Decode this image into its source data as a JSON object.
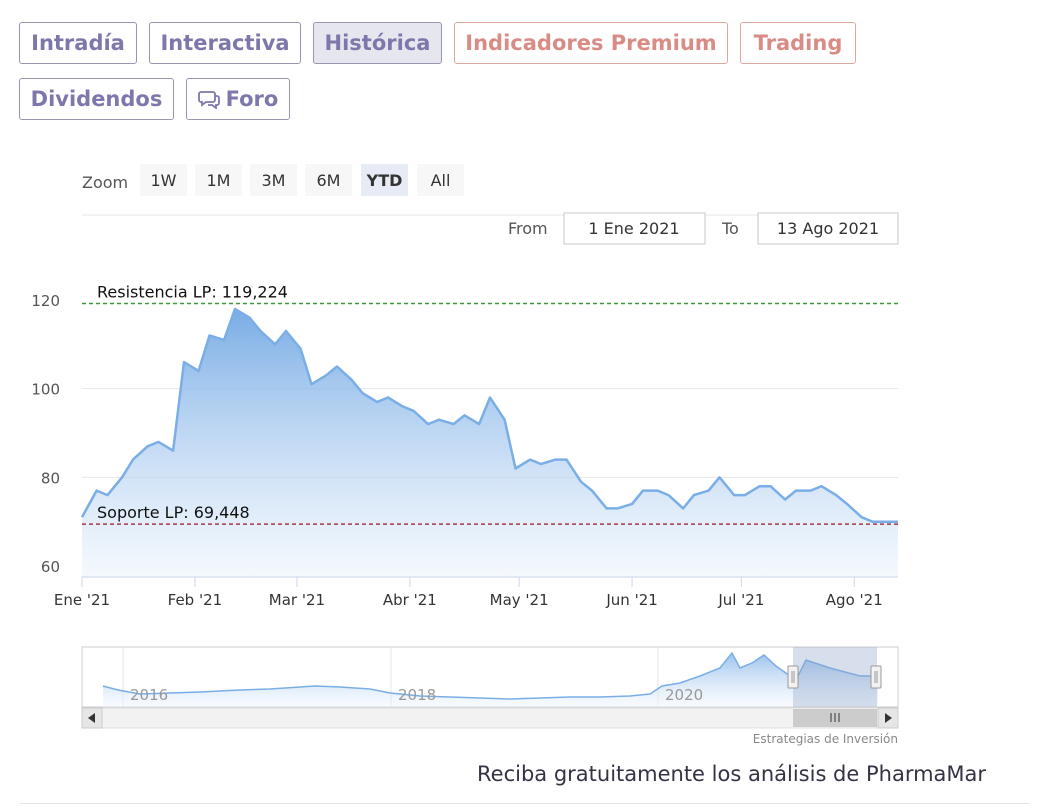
{
  "tabs": {
    "intradia": "Intradía",
    "interactiva": "Interactiva",
    "historica": "Histórica",
    "indicadores": "Indicadores Premium",
    "trading": "Trading",
    "dividendos": "Dividendos",
    "foro": "Foro"
  },
  "range_selector": {
    "zoom_label": "Zoom",
    "buttons": [
      "1W",
      "1M",
      "3M",
      "6M",
      "YTD",
      "All"
    ],
    "selected": "YTD",
    "from_label": "From",
    "from_value": "1 Ene 2021",
    "to_label": "To",
    "to_value": "13 Ago 2021"
  },
  "credit": "Estrategias de Inversión",
  "cta": "Reciba gratuitamente los análisis de PharmaMar",
  "colors": {
    "line": "#7aaee6",
    "area_top": "#7aaee6",
    "resistance": "#3a9a3a",
    "support": "#a33a4a",
    "tab_text": "#7d77ac",
    "premium_text": "#d98c85"
  },
  "chart_data": {
    "type": "area",
    "title": "",
    "xlabel": "",
    "ylabel": "",
    "ylim": [
      56,
      122
    ],
    "x_ticks": [
      "Ene '21",
      "Feb '21",
      "Mar '21",
      "Abr '21",
      "May '21",
      "Jun '21",
      "Jul '21",
      "Ago '21"
    ],
    "y_ticks": [
      60,
      80,
      100,
      120
    ],
    "grid": true,
    "annotations": [
      {
        "label": "Resistencia LP: 119,224",
        "value": 119.224
      },
      {
        "label": "Soporte LP: 69,448",
        "value": 69.448
      }
    ],
    "x": [
      "2021-01-01",
      "2021-01-05",
      "2021-01-08",
      "2021-01-12",
      "2021-01-15",
      "2021-01-19",
      "2021-01-22",
      "2021-01-26",
      "2021-01-29",
      "2021-02-02",
      "2021-02-05",
      "2021-02-09",
      "2021-02-12",
      "2021-02-16",
      "2021-02-19",
      "2021-02-23",
      "2021-02-26",
      "2021-03-02",
      "2021-03-05",
      "2021-03-09",
      "2021-03-12",
      "2021-03-16",
      "2021-03-19",
      "2021-03-23",
      "2021-03-26",
      "2021-03-30",
      "2021-04-02",
      "2021-04-06",
      "2021-04-09",
      "2021-04-13",
      "2021-04-16",
      "2021-04-20",
      "2021-04-23",
      "2021-04-27",
      "2021-04-30",
      "2021-05-04",
      "2021-05-07",
      "2021-05-11",
      "2021-05-14",
      "2021-05-18",
      "2021-05-21",
      "2021-05-25",
      "2021-05-28",
      "2021-06-01",
      "2021-06-04",
      "2021-06-08",
      "2021-06-11",
      "2021-06-15",
      "2021-06-18",
      "2021-06-22",
      "2021-06-25",
      "2021-06-29",
      "2021-07-02",
      "2021-07-06",
      "2021-07-09",
      "2021-07-13",
      "2021-07-16",
      "2021-07-20",
      "2021-07-23",
      "2021-07-27",
      "2021-07-30",
      "2021-08-03",
      "2021-08-06",
      "2021-08-10",
      "2021-08-13"
    ],
    "series": [
      {
        "values": [
          71,
          77,
          76,
          80,
          84,
          87,
          88,
          86,
          106,
          104,
          112,
          111,
          118,
          116,
          113,
          110,
          113,
          109,
          101,
          103,
          105,
          102,
          99,
          97,
          98,
          96,
          95,
          92,
          93,
          92,
          94,
          92,
          98,
          93,
          82,
          84,
          83,
          84,
          84,
          79,
          77,
          73,
          73,
          74,
          77,
          77,
          76,
          73,
          76,
          77,
          80,
          76,
          76,
          78,
          78,
          75,
          77,
          77,
          78,
          76,
          74,
          71,
          70,
          70,
          70
        ]
      }
    ]
  },
  "navigator": {
    "labels": [
      "2016",
      "2018",
      "2020"
    ]
  }
}
